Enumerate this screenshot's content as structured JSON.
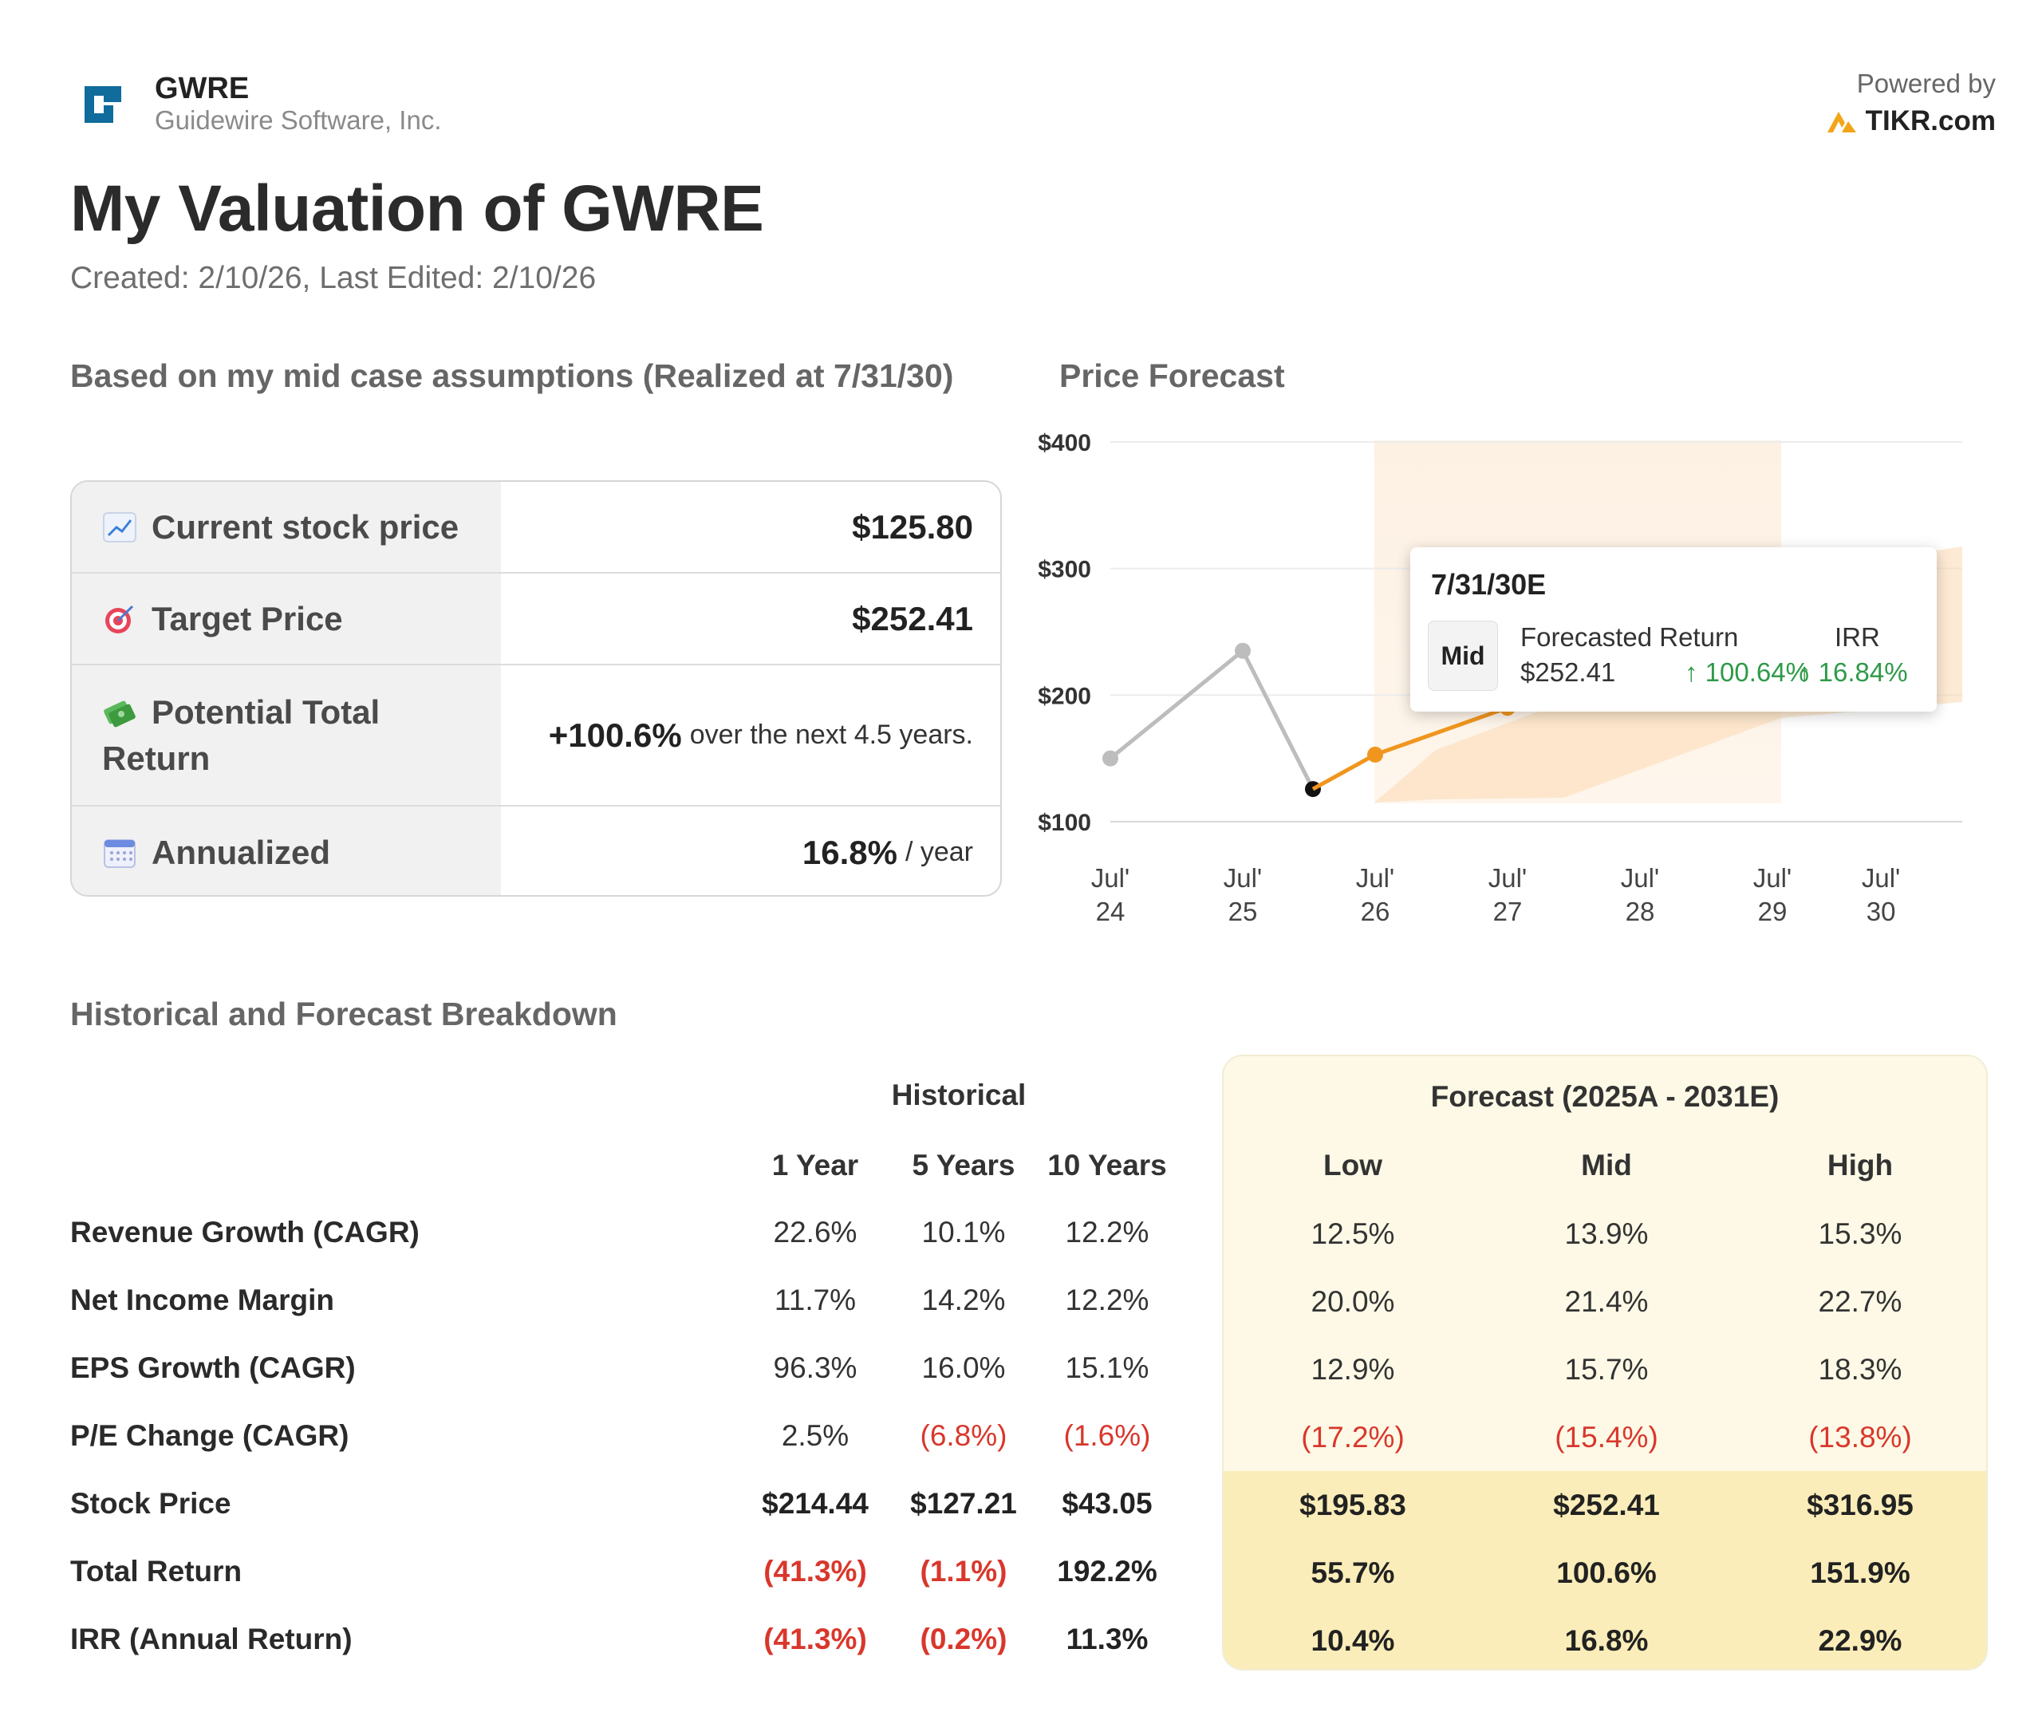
{
  "header": {
    "ticker": "GWRE",
    "company": "Guidewire Software, Inc.",
    "powered_by": "Powered by",
    "brand": "TIKR.com"
  },
  "title": "My Valuation of GWRE",
  "dates": "Created: 2/10/26, Last Edited: 2/10/26",
  "summary": {
    "heading": "Based on my mid case assumptions (Realized at 7/31/30)",
    "rows": [
      {
        "icon": "chart-up-icon",
        "label": "Current stock price",
        "value": "$125.80",
        "note": ""
      },
      {
        "icon": "target-icon",
        "label": "Target Price",
        "value": "$252.41",
        "note": ""
      },
      {
        "icon": "money-icon",
        "label_1": "Potential Total",
        "label_2": "Return",
        "value": "+100.6%",
        "note": "over the next 4.5 years."
      },
      {
        "icon": "calendar-icon",
        "label": "Annualized",
        "value": "16.8%",
        "note": "/ year"
      }
    ]
  },
  "chart": {
    "heading": "Price Forecast",
    "y_ticks": [
      "$400",
      "$300",
      "$200",
      "$100"
    ],
    "x_ticks": [
      {
        "m": "Jul'",
        "y": "24"
      },
      {
        "m": "Jul'",
        "y": "25"
      },
      {
        "m": "Jul'",
        "y": "26"
      },
      {
        "m": "Jul'",
        "y": "27"
      },
      {
        "m": "Jul'",
        "y": "28"
      },
      {
        "m": "Jul'",
        "y": "29"
      },
      {
        "m": "Jul'",
        "y": "30"
      }
    ],
    "tooltip": {
      "date": "7/31/30E",
      "badge": "Mid",
      "ret_label": "Forecasted Return",
      "irr_label": "IRR",
      "price": "$252.41",
      "ret": "↑ 100.64%",
      "irr": "↑ 16.84%"
    }
  },
  "chart_data": {
    "type": "line",
    "title": "Price Forecast",
    "ylim": [
      100,
      400
    ],
    "x_labels": [
      "Jul' 24",
      "Jul' 25",
      "Jul' 26",
      "Jul' 27",
      "Jul' 28",
      "Jul' 29",
      "Jul' 30"
    ],
    "series": [
      {
        "name": "Historical",
        "color": "#bdbdbd",
        "points": [
          [
            2024.58,
            150
          ],
          [
            2025.58,
            235
          ],
          [
            2026.11,
            125.8
          ]
        ]
      },
      {
        "name": "Mid Forecast",
        "color": "#f0961e",
        "points": [
          [
            2026.11,
            125.8
          ],
          [
            2026.58,
            153
          ],
          [
            2027.58,
            190
          ],
          [
            2030.58,
            252.41
          ]
        ]
      }
    ]
  },
  "breakdown": {
    "heading": "Historical and Forecast Breakdown",
    "historical_label": "Historical",
    "forecast_label": "Forecast (2025A - 2031E)",
    "columns": [
      "1 Year",
      "5 Years",
      "10 Years",
      "Low",
      "Mid",
      "High"
    ],
    "rows": [
      {
        "label": "Revenue Growth (CAGR)",
        "values": [
          "22.6%",
          "10.1%",
          "12.2%",
          "12.5%",
          "13.9%",
          "15.3%"
        ]
      },
      {
        "label": "Net Income Margin",
        "values": [
          "11.7%",
          "14.2%",
          "12.2%",
          "20.0%",
          "21.4%",
          "22.7%"
        ]
      },
      {
        "label": "EPS Growth (CAGR)",
        "values": [
          "96.3%",
          "16.0%",
          "15.1%",
          "12.9%",
          "15.7%",
          "18.3%"
        ]
      },
      {
        "label": "P/E Change (CAGR)",
        "values": [
          "2.5%",
          "(6.8%)",
          "(1.6%)",
          "(17.2%)",
          "(15.4%)",
          "(13.8%)"
        ]
      },
      {
        "label": "Stock Price",
        "values": [
          "$214.44",
          "$127.21",
          "$43.05",
          "$195.83",
          "$252.41",
          "$316.95"
        ]
      },
      {
        "label": "Total Return",
        "values": [
          "(41.3%)",
          "(1.1%)",
          "192.2%",
          "55.7%",
          "100.6%",
          "151.9%"
        ]
      },
      {
        "label": "IRR (Annual Return)",
        "values": [
          "(41.3%)",
          "(0.2%)",
          "11.3%",
          "10.4%",
          "16.8%",
          "22.9%"
        ]
      }
    ]
  }
}
